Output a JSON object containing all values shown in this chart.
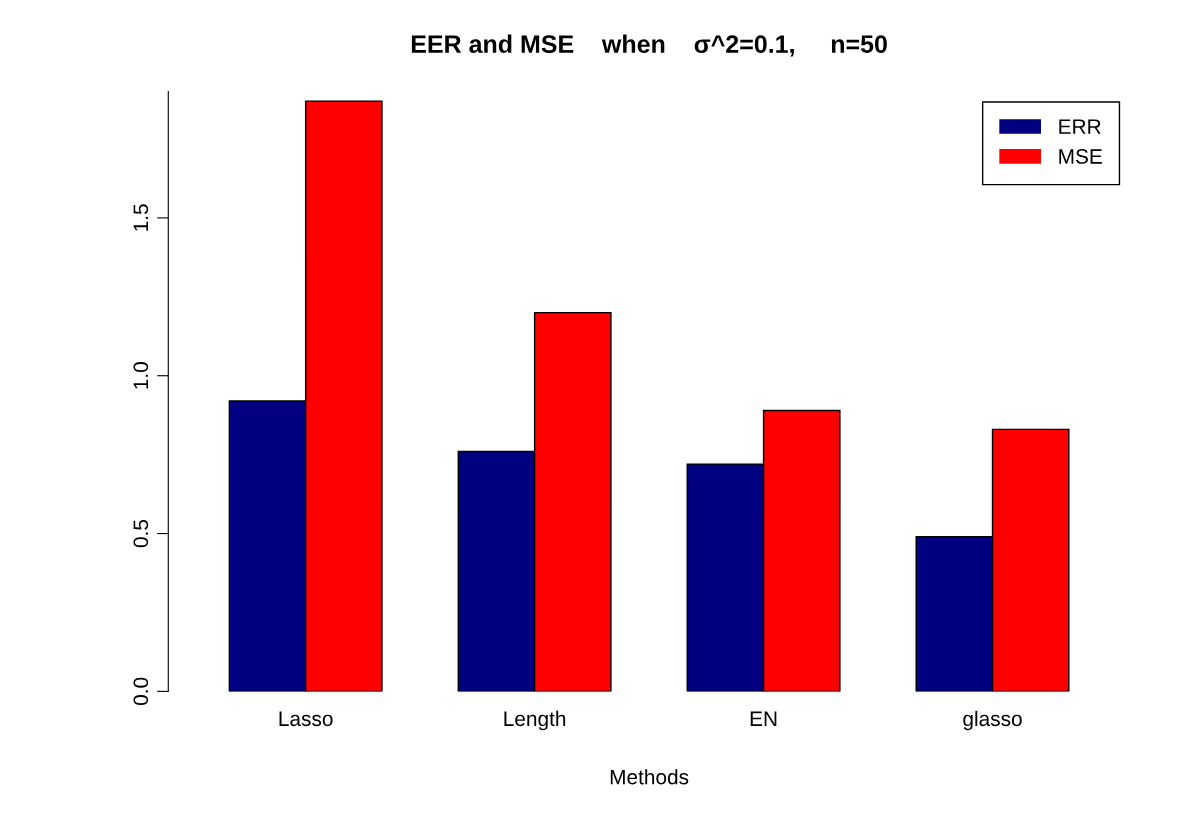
{
  "chart_data": {
    "type": "bar",
    "title": "EER and MSE    when    σ^2=0.1,     n=50",
    "xlabel": "Methods",
    "categories": [
      "Lasso",
      "Length",
      "EN",
      "glasso"
    ],
    "series": [
      {
        "name": "ERR",
        "color": "#000080",
        "values": [
          0.92,
          0.76,
          0.72,
          0.49
        ]
      },
      {
        "name": "MSE",
        "color": "#ff0000",
        "values": [
          1.87,
          1.2,
          0.89,
          0.83
        ]
      }
    ],
    "ylim": [
      0,
      1.9
    ],
    "yticks": [
      {
        "value": 0,
        "label": "0.0"
      },
      {
        "value": 0.5,
        "label": "0.5"
      },
      {
        "value": 1,
        "label": "1.0"
      },
      {
        "value": 1.5,
        "label": "1.5"
      }
    ],
    "grid": false,
    "legend": "top right"
  }
}
